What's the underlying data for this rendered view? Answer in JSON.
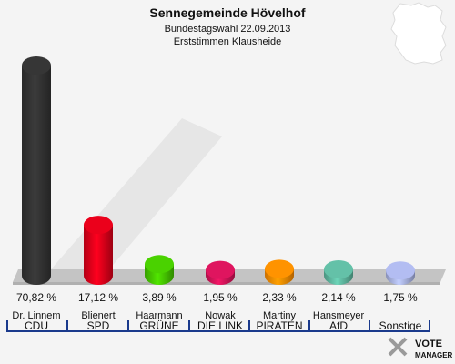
{
  "chart_data": {
    "type": "bar",
    "title": "Sennegemeinde Hövelhof",
    "subtitle": "Bundestagswahl 22.09.2013",
    "subtitle2": "Erststimmen Klausheide",
    "unit": "%",
    "ylim": [
      0,
      75
    ],
    "candidates": [
      "Dr. Linnem",
      "Blienert",
      "Haarmann",
      "Nowak",
      "Martiny",
      "Hansmeyer",
      ""
    ],
    "categories": [
      "CDU",
      "SPD",
      "GRÜNE",
      "DIE LINK",
      "PIRATEN",
      "AfD",
      "Sonstige"
    ],
    "values": [
      70.82,
      17.12,
      3.89,
      1.95,
      2.33,
      2.14,
      1.75
    ],
    "value_labels": [
      "70,82 %",
      "17,12 %",
      "3,89 %",
      "1,95 %",
      "2,33 %",
      "2,14 %",
      "1,75 %"
    ],
    "colors": [
      "#333333",
      "#e0001a",
      "#46c800",
      "#d4145a",
      "#ff8c00",
      "#5fb8a0",
      "#aab4e6"
    ]
  },
  "brand": {
    "text": "VOTE",
    "text2": "MANAGER",
    "icon": "vote-manager-logo"
  },
  "map": {
    "icon": "germany-map-icon"
  }
}
